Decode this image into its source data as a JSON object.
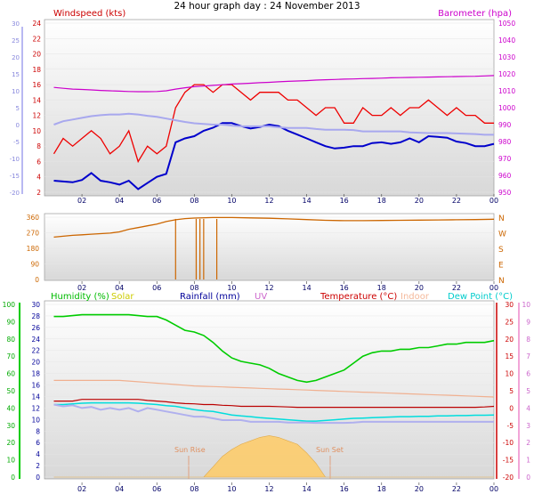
{
  "title": "24 hour graph day : 24 November 2013",
  "x_ticks": [
    "02",
    "04",
    "06",
    "08",
    "10",
    "12",
    "14",
    "16",
    "18",
    "20",
    "22",
    "00"
  ],
  "chart_data": [
    {
      "type": "line",
      "panel": "wind-baro",
      "left_label": "Windspeed (kts)",
      "right_label": "Barometer (hpa)",
      "left_ticks": [
        2,
        4,
        6,
        8,
        10,
        12,
        14,
        16,
        18,
        20,
        22,
        24
      ],
      "left_ylim": [
        2,
        24
      ],
      "right_ticks": [
        950,
        960,
        970,
        980,
        990,
        1000,
        1010,
        1020,
        1030,
        1040,
        1050
      ],
      "right_ylim": [
        950,
        1050
      ],
      "outer_ticks": [
        -20,
        -15,
        -10,
        -5,
        0,
        5,
        10,
        15,
        20,
        25,
        30
      ],
      "x_hours": [
        0.5,
        1,
        1.5,
        2,
        2.5,
        3,
        3.5,
        4,
        4.5,
        5,
        5.5,
        6,
        6.5,
        7,
        7.5,
        8,
        8.5,
        9,
        9.5,
        10,
        10.5,
        11,
        11.5,
        12,
        12.5,
        13,
        13.5,
        14,
        14.5,
        15,
        15.5,
        16,
        16.5,
        17,
        17.5,
        18,
        18.5,
        19,
        19.5,
        20,
        20.5,
        21,
        21.5,
        22,
        22.5,
        23,
        23.5,
        24
      ],
      "series": [
        {
          "name": "Gust",
          "color": "#ee0000",
          "values": [
            7,
            9,
            8,
            9,
            10,
            9,
            7,
            8,
            10,
            6,
            8,
            7,
            8,
            13,
            15,
            16,
            16,
            15,
            16,
            16,
            15,
            14,
            15,
            15,
            15,
            14,
            14,
            13,
            12,
            13,
            13,
            11,
            11,
            13,
            12,
            12,
            13,
            12,
            13,
            13,
            14,
            13,
            12,
            13,
            12,
            12,
            11,
            11
          ]
        },
        {
          "name": "Average",
          "color": "#0000cc",
          "values": [
            3.5,
            3.4,
            3.3,
            3.6,
            4.5,
            3.5,
            3.3,
            3,
            3.5,
            2.4,
            3.2,
            4,
            4.4,
            8.5,
            9,
            9.3,
            10,
            10.4,
            11,
            11,
            10.6,
            10.3,
            10.5,
            10.8,
            10.6,
            10,
            9.5,
            9,
            8.5,
            8,
            7.7,
            7.8,
            8,
            8,
            8.4,
            8.5,
            8.3,
            8.5,
            9,
            8.5,
            9.3,
            9.2,
            9.1,
            8.6,
            8.4,
            8,
            8,
            8.3
          ]
        },
        {
          "name": "Barometer",
          "color": "#cc00cc",
          "values": [
            1012,
            1011.5,
            1011,
            1010.8,
            1010.5,
            1010.2,
            1010,
            1009.8,
            1009.6,
            1009.5,
            1009.5,
            1009.6,
            1010,
            1011,
            1011.8,
            1012.4,
            1012.8,
            1013.2,
            1013.6,
            1014,
            1014.2,
            1014.5,
            1014.8,
            1015,
            1015.3,
            1015.6,
            1015.8,
            1016,
            1016.3,
            1016.5,
            1016.7,
            1016.9,
            1017,
            1017.2,
            1017.3,
            1017.5,
            1017.7,
            1017.8,
            1017.9,
            1018,
            1018.1,
            1018.2,
            1018.3,
            1018.4,
            1018.5,
            1018.6,
            1018.8,
            1019
          ]
        },
        {
          "name": "Outer",
          "color": "#a8a8ee",
          "values": [
            0,
            1,
            1.5,
            2,
            2.5,
            2.8,
            3,
            3,
            3.2,
            3,
            2.6,
            2.3,
            1.8,
            1.3,
            0.8,
            0.4,
            0.2,
            0,
            0,
            -0.3,
            -0.5,
            -0.5,
            -0.5,
            -0.5,
            -0.8,
            -1,
            -1,
            -1,
            -1.3,
            -1.5,
            -1.5,
            -1.5,
            -1.6,
            -2,
            -2,
            -2,
            -2,
            -2,
            -2.3,
            -2.4,
            -2.5,
            -2.5,
            -2.5,
            -2.6,
            -2.7,
            -2.8,
            -3,
            -3
          ]
        }
      ]
    },
    {
      "type": "line",
      "panel": "wind-direction",
      "left_ticks": [
        0,
        90,
        180,
        270,
        360
      ],
      "left_ylim": [
        0,
        360
      ],
      "right_labels": [
        "N",
        "W",
        "S",
        "E",
        "N"
      ],
      "series": [
        {
          "name": "Direction",
          "color": "#cc6600",
          "hours": [
            0.5,
            1,
            1.5,
            2,
            2.5,
            3,
            3.5,
            4,
            4.5,
            5,
            5.5,
            6,
            6.5,
            7,
            7.5,
            8,
            9,
            10,
            11,
            12,
            13,
            14,
            15,
            16,
            17,
            18,
            19,
            20,
            21,
            22,
            23,
            24
          ],
          "values": [
            245,
            250,
            255,
            258,
            262,
            265,
            268,
            275,
            290,
            300,
            310,
            320,
            335,
            345,
            352,
            355,
            358,
            358,
            356,
            354,
            350,
            346,
            342,
            340,
            340,
            341,
            342,
            343,
            344,
            345,
            346,
            348
          ]
        }
      ],
      "dips_hours": [
        7.0,
        8.1,
        8.3,
        8.5,
        9.2
      ]
    },
    {
      "type": "line",
      "panel": "weather",
      "legend": [
        "Humidity (%)",
        "Solar",
        "Rainfall (mm)",
        "UV",
        "Temperature (°C)",
        "Indoor",
        "Dew Point (°C)"
      ],
      "humidity_ticks": [
        0,
        10,
        20,
        30,
        40,
        50,
        60,
        70,
        80,
        90,
        100
      ],
      "rainfall_ticks": [
        0,
        2,
        4,
        6,
        8,
        10,
        12,
        14,
        16,
        18,
        20,
        22,
        24,
        26,
        28,
        30
      ],
      "temperature_ticks": [
        -20,
        -15,
        -10,
        -5,
        0,
        5,
        10,
        15,
        20,
        25,
        30
      ],
      "uv_ticks": [
        0,
        1,
        2,
        3,
        4,
        5,
        6,
        7,
        8,
        9,
        10
      ],
      "annotations": [
        "Sun Rise",
        "Sun Set"
      ],
      "x_hours": [
        0.5,
        1,
        1.5,
        2,
        2.5,
        3,
        3.5,
        4,
        4.5,
        5,
        5.5,
        6,
        6.5,
        7,
        7.5,
        8,
        8.5,
        9,
        9.5,
        10,
        10.5,
        11,
        11.5,
        12,
        12.5,
        13,
        13.5,
        14,
        14.5,
        15,
        15.5,
        16,
        16.5,
        17,
        17.5,
        18,
        18.5,
        19,
        19.5,
        20,
        20.5,
        21,
        21.5,
        22,
        22.5,
        23,
        23.5,
        24
      ],
      "series": [
        {
          "name": "Humidity",
          "color": "#00cc00",
          "values": [
            93,
            93,
            93.5,
            94,
            94,
            94,
            94,
            94,
            94,
            93.5,
            93,
            93,
            91,
            88,
            85,
            84,
            82,
            78,
            73,
            69,
            67,
            66,
            65,
            63,
            60,
            58,
            56,
            55,
            56,
            58,
            60,
            62,
            66,
            70,
            72,
            73,
            73,
            74,
            74,
            75,
            75,
            76,
            77,
            77,
            78,
            78,
            78,
            79
          ]
        },
        {
          "name": "Temperature",
          "color": "#bb0000",
          "values": [
            2,
            2,
            2,
            2.5,
            2.5,
            2.5,
            2.5,
            2.5,
            2.5,
            2.5,
            2.2,
            2,
            1.8,
            1.5,
            1.3,
            1.2,
            1,
            1,
            0.8,
            0.7,
            0.5,
            0.5,
            0.5,
            0.5,
            0.4,
            0.3,
            0.2,
            0.2,
            0.2,
            0.2,
            0.2,
            0.2,
            0.2,
            0.2,
            0.2,
            0.2,
            0.2,
            0.2,
            0.2,
            0.2,
            0.2,
            0.2,
            0.2,
            0.2,
            0.2,
            0.2,
            0.3,
            0.5
          ]
        },
        {
          "name": "Indoor",
          "color": "#f0b090",
          "values": [
            8,
            8,
            8,
            8,
            8,
            8,
            8,
            8,
            7.8,
            7.6,
            7.4,
            7.2,
            7,
            6.8,
            6.6,
            6.4,
            6.3,
            6.2,
            6.1,
            6,
            5.9,
            5.8,
            5.7,
            5.6,
            5.5,
            5.4,
            5.3,
            5.2,
            5.1,
            5,
            4.9,
            4.8,
            4.7,
            4.6,
            4.5,
            4.4,
            4.3,
            4.2,
            4.1,
            4,
            3.9,
            3.8,
            3.7,
            3.6,
            3.5,
            3.4,
            3.3,
            3.2
          ]
        },
        {
          "name": "Dew Point",
          "color": "#00dddd",
          "values": [
            1,
            1,
            1.2,
            1.4,
            1.5,
            1.5,
            1.5,
            1.5,
            1.5,
            1.4,
            1.2,
            1,
            0.7,
            0.5,
            0,
            -0.5,
            -0.8,
            -1,
            -1.5,
            -2,
            -2.3,
            -2.5,
            -2.8,
            -3,
            -3.2,
            -3.4,
            -3.6,
            -3.8,
            -3.8,
            -3.6,
            -3.4,
            -3.2,
            -3,
            -2.9,
            -2.8,
            -2.7,
            -2.6,
            -2.5,
            -2.5,
            -2.4,
            -2.4,
            -2.3,
            -2.3,
            -2.2,
            -2.2,
            -2.1,
            -2.1,
            -2
          ]
        },
        {
          "name": "Outer",
          "color": "#b0b0ee",
          "values": [
            1,
            0.5,
            0.8,
            0,
            0.3,
            -0.5,
            0,
            -0.5,
            0,
            -1,
            0,
            -0.5,
            -1,
            -1.5,
            -2,
            -2.5,
            -2.5,
            -3,
            -3.5,
            -3.5,
            -3.5,
            -4,
            -4,
            -4,
            -4,
            -4.2,
            -4.2,
            -4.2,
            -4.3,
            -4.3,
            -4.3,
            -4.3,
            -4.2,
            -4,
            -4,
            -4,
            -4,
            -4,
            -4,
            -4,
            -4,
            -4,
            -4,
            -4,
            -4,
            -4,
            -4,
            -4
          ]
        },
        {
          "name": "Solar",
          "color": "#ffcc66",
          "values": [
            0,
            0,
            0,
            0,
            0,
            0,
            0,
            0,
            0,
            0,
            0,
            0,
            0,
            0,
            0,
            0,
            0,
            0.6,
            1.2,
            1.6,
            1.9,
            2.1,
            2.3,
            2.4,
            2.3,
            2.1,
            1.9,
            1.4,
            0.8,
            0,
            0,
            0,
            0,
            0,
            0,
            0,
            0,
            0,
            0,
            0,
            0,
            0,
            0,
            0,
            0,
            0,
            0,
            0
          ]
        }
      ]
    }
  ],
  "colors": {
    "windspeed_title": "#cc0000",
    "barometer_title": "#cc00cc",
    "humidity": "#00bb00",
    "solar": "#cccc00",
    "rainfall": "#000099",
    "uv": "#cc66cc",
    "temperature": "#cc0000",
    "indoor": "#f4b89a",
    "dewpoint": "#00cccc",
    "direction_axis": "#cc6600"
  }
}
